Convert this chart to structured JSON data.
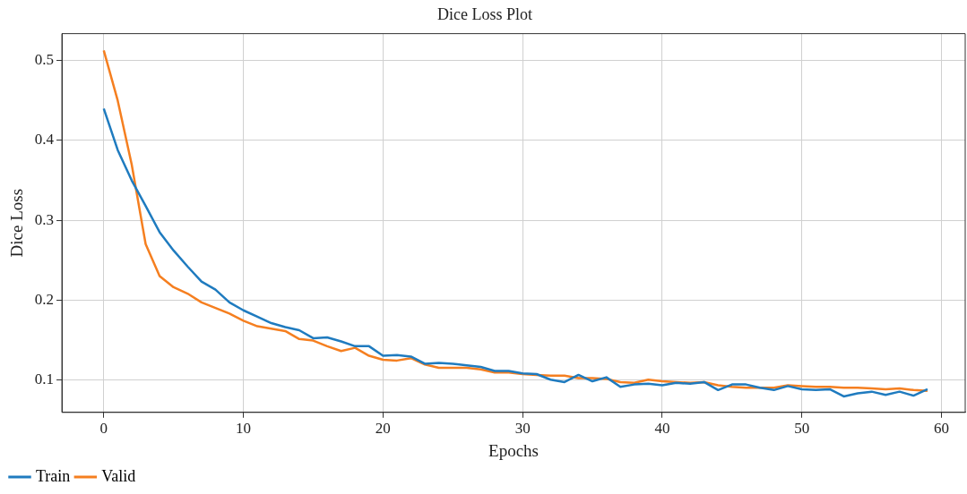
{
  "chart_data": {
    "type": "line",
    "title": "Dice Loss Plot",
    "xlabel": "Epochs",
    "ylabel": "Dice Loss",
    "x": [
      0,
      1,
      2,
      3,
      4,
      5,
      6,
      7,
      8,
      9,
      10,
      11,
      12,
      13,
      14,
      15,
      16,
      17,
      18,
      19,
      20,
      21,
      22,
      23,
      24,
      25,
      26,
      27,
      28,
      29,
      30,
      31,
      32,
      33,
      34,
      35,
      36,
      37,
      38,
      39,
      40,
      41,
      42,
      43,
      44,
      45,
      46,
      47,
      48,
      49,
      50,
      51,
      52,
      53,
      54,
      55,
      56,
      57,
      58,
      59
    ],
    "series": [
      {
        "name": "Train",
        "color": "#1f7bbf",
        "values": [
          0.44,
          0.388,
          0.35,
          0.318,
          0.285,
          0.262,
          0.242,
          0.223,
          0.213,
          0.197,
          0.187,
          0.179,
          0.171,
          0.166,
          0.162,
          0.152,
          0.153,
          0.148,
          0.142,
          0.142,
          0.13,
          0.131,
          0.129,
          0.12,
          0.121,
          0.12,
          0.118,
          0.116,
          0.111,
          0.111,
          0.108,
          0.107,
          0.1,
          0.097,
          0.106,
          0.098,
          0.103,
          0.091,
          0.094,
          0.095,
          0.093,
          0.096,
          0.095,
          0.097,
          0.087,
          0.094,
          0.094,
          0.09,
          0.087,
          0.092,
          0.088,
          0.087,
          0.088,
          0.079,
          0.083,
          0.085,
          0.081,
          0.085,
          0.08,
          0.088
        ]
      },
      {
        "name": "Valid",
        "color": "#f57f20",
        "values": [
          0.513,
          0.45,
          0.37,
          0.27,
          0.23,
          0.216,
          0.208,
          0.197,
          0.19,
          0.183,
          0.174,
          0.167,
          0.164,
          0.161,
          0.151,
          0.149,
          0.142,
          0.136,
          0.14,
          0.13,
          0.125,
          0.124,
          0.127,
          0.119,
          0.115,
          0.115,
          0.115,
          0.113,
          0.109,
          0.109,
          0.107,
          0.106,
          0.105,
          0.105,
          0.102,
          0.102,
          0.101,
          0.097,
          0.096,
          0.1,
          0.098,
          0.097,
          0.096,
          0.097,
          0.093,
          0.091,
          0.09,
          0.09,
          0.09,
          0.093,
          0.092,
          0.091,
          0.091,
          0.09,
          0.09,
          0.089,
          0.088,
          0.089,
          0.087,
          0.086
        ]
      }
    ],
    "xlim": [
      -3,
      61.7
    ],
    "ylim": [
      0.059,
      0.534
    ],
    "xticks": [
      0,
      10,
      20,
      30,
      40,
      50,
      60
    ],
    "yticks": [
      0.1,
      0.2,
      0.3,
      0.4,
      0.5
    ],
    "grid": true,
    "legend": "bottom left",
    "marker": "none",
    "line_style": "solid"
  }
}
